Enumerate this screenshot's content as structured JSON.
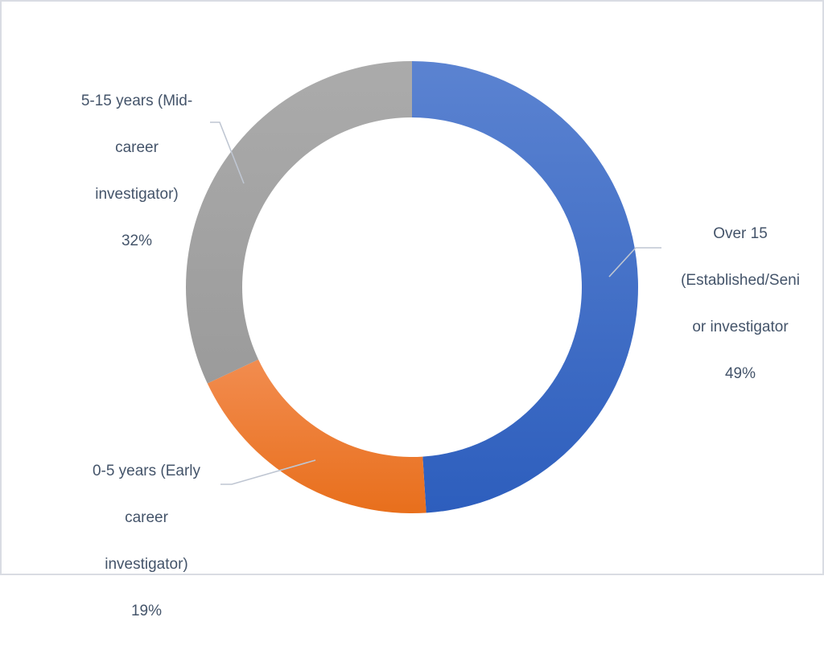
{
  "chart_data": {
    "type": "pie",
    "subtype": "donut",
    "title": "",
    "categories": [
      "Over 15 (Established/Senior investigator",
      "0-5 years (Early career investigator)",
      "5-15 years (Mid-career investigator)"
    ],
    "values": [
      49,
      19,
      32
    ],
    "unit": "%",
    "colors": [
      "#4472c4",
      "#ed7d31",
      "#a5a5a5"
    ],
    "legend": "none",
    "data_labels": "category name and percentage, outside with leader lines"
  },
  "labels": {
    "senior": {
      "lines": [
        "Over 15",
        "(Established/Seni",
        "or investigator",
        "49%"
      ]
    },
    "early": {
      "lines": [
        "0-5 years (Early",
        "career",
        "investigator)",
        "19%"
      ]
    },
    "mid": {
      "lines": [
        "5-15 years (Mid-",
        "career",
        "investigator)",
        "32%"
      ]
    }
  },
  "colors": {
    "blue_top": "#5b83d1",
    "blue_bottom": "#2d5ebd",
    "orange_top": "#f28c4f",
    "orange_bottom": "#e86f1c",
    "gray_top": "#a9a9a9",
    "gray_bottom": "#9c9c9c",
    "leader_line": "#bfc6d2",
    "label_text": "#44546a",
    "border": "#d9dce3"
  }
}
